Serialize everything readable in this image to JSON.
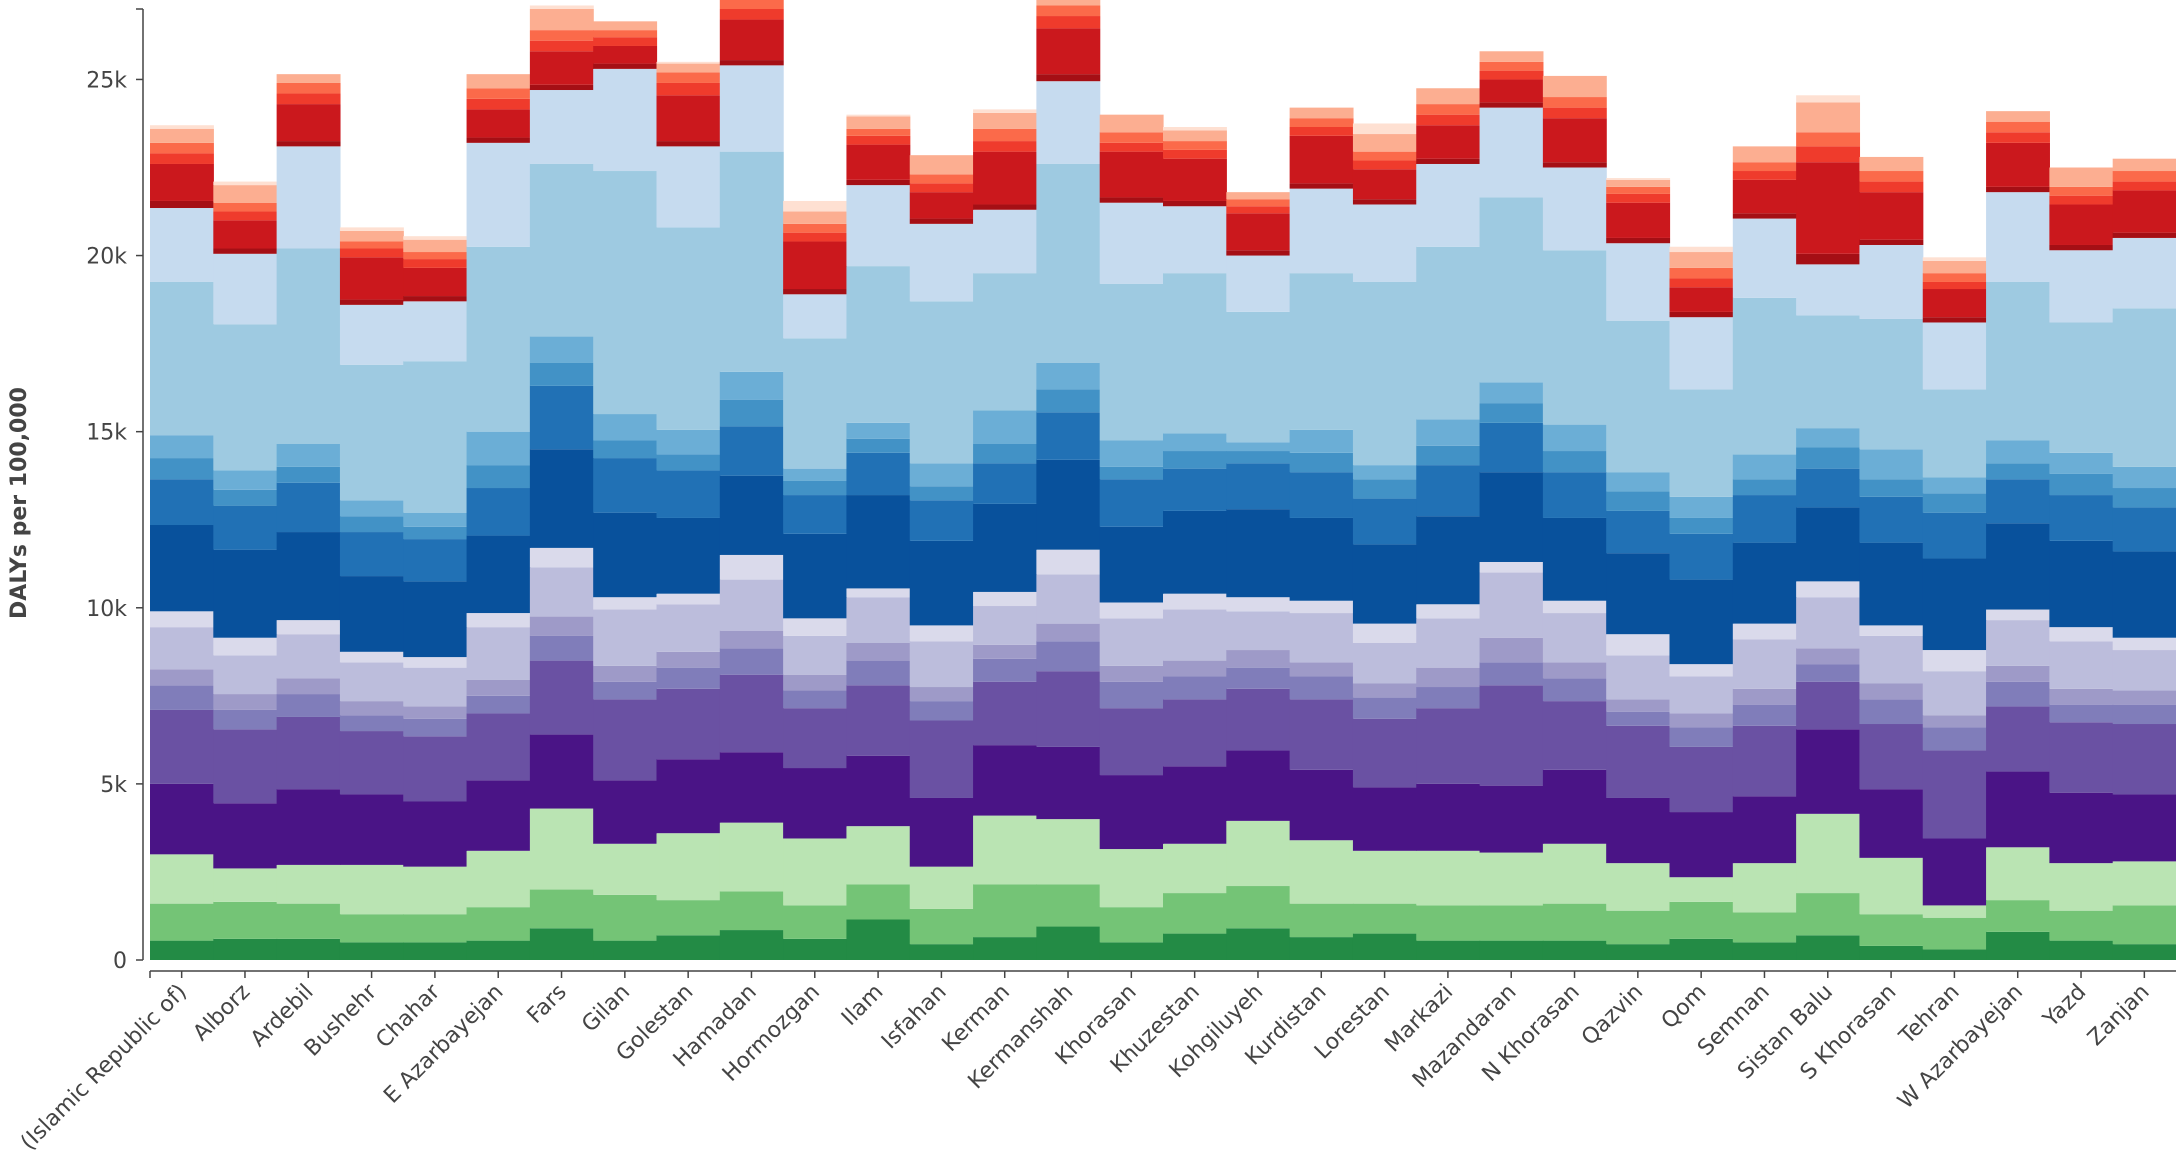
{
  "chart_data": {
    "type": "bar",
    "stacked": true,
    "ylabel": "DALYs per 100,000",
    "ylim": [
      0,
      27000
    ],
    "y_ticks": [
      0,
      5000,
      10000,
      15000,
      20000,
      25000
    ],
    "y_tick_labels": [
      "0",
      "5k",
      "10k",
      "15k",
      "20k",
      "25k"
    ],
    "categories": [
      "Iran (Islamic Republic of)",
      "Alborz",
      "Ardebil",
      "Bushehr",
      "Chahar",
      "E Azarbayejan",
      "Fars",
      "Gilan",
      "Golestan",
      "Hamadan",
      "Hormozgan",
      "Ilam",
      "Isfahan",
      "Kerman",
      "Kermanshah",
      "Khorasan",
      "Khuzestan",
      "Kohgiluyeh",
      "Kurdistan",
      "Lorestan",
      "Markazi",
      "Mazandaran",
      "N Khorasan",
      "Qazvin",
      "Qom",
      "Semnan",
      "Sistan Balu",
      "S Khorasan",
      "Tehran",
      "W Azarbayejan",
      "Yazd",
      "Zanjan"
    ],
    "tick_labels": [
      "(Islamic Republic of)",
      "Alborz",
      "Ardebil",
      "Bushehr",
      "Chahar",
      "E Azarbayejan",
      "Fars",
      "Gilan",
      "Golestan",
      "Hamadan",
      "Hormozgan",
      "Ilam",
      "Isfahan",
      "Kerman",
      "Kermanshah",
      "Khorasan",
      "Khuzestan",
      "Kohgiluyeh",
      "Kurdistan",
      "Lorestan",
      "Markazi",
      "Mazandaran",
      "N Khorasan",
      "Qazvin",
      "Qom",
      "Semnan",
      "Sistan Balu",
      "S Khorasan",
      "Tehran",
      "W Azarbayejan",
      "Yazd",
      "Zanjan"
    ],
    "series": [
      {
        "color": "#238b45",
        "values": [
          550,
          600,
          600,
          500,
          500,
          550,
          900,
          550,
          700,
          850,
          600,
          1150,
          450,
          650,
          950,
          500,
          750,
          900,
          650,
          750,
          550,
          550,
          550,
          450,
          600,
          500,
          700,
          400,
          300,
          800,
          550,
          450
        ]
      },
      {
        "color": "#74c476",
        "values": [
          1050,
          1050,
          1000,
          800,
          800,
          950,
          1100,
          1300,
          1000,
          1100,
          950,
          1000,
          1000,
          1500,
          1200,
          1000,
          1150,
          1200,
          950,
          850,
          1000,
          1000,
          1050,
          950,
          1050,
          850,
          1200,
          900,
          900,
          900,
          850,
          1100
        ]
      },
      {
        "color": "#bae4b3",
        "values": [
          1400,
          950,
          1100,
          1400,
          1350,
          1600,
          2300,
          1450,
          1900,
          1950,
          1900,
          1650,
          1200,
          1950,
          1850,
          1650,
          1400,
          1850,
          1800,
          1500,
          1550,
          1500,
          1700,
          1350,
          700,
          1400,
          2250,
          1600,
          350,
          1500,
          1350,
          1250
        ]
      },
      {
        "color": "#4a1486",
        "values": [
          2000,
          1850,
          2150,
          2000,
          1850,
          2000,
          2100,
          1800,
          2100,
          2000,
          2000,
          2000,
          1950,
          2000,
          2050,
          2100,
          2200,
          2000,
          2000,
          1800,
          1900,
          1900,
          2100,
          1850,
          1850,
          1900,
          2400,
          1950,
          1900,
          2150,
          2000,
          1900
        ]
      },
      {
        "color": "#6a51a3",
        "values": [
          2100,
          2100,
          2050,
          1800,
          1850,
          1900,
          2100,
          2300,
          2000,
          2200,
          1700,
          2000,
          2200,
          1800,
          2150,
          1900,
          1900,
          1750,
          2000,
          1950,
          2150,
          2850,
          1950,
          2050,
          1850,
          2000,
          1350,
          1850,
          2500,
          1850,
          2000,
          2000
        ]
      },
      {
        "color": "#807dba",
        "values": [
          700,
          550,
          650,
          450,
          500,
          500,
          700,
          500,
          600,
          750,
          500,
          700,
          550,
          650,
          850,
          750,
          650,
          600,
          650,
          600,
          600,
          650,
          650,
          400,
          550,
          600,
          500,
          700,
          650,
          700,
          500,
          550
        ]
      },
      {
        "color": "#9e9ac8",
        "values": [
          450,
          450,
          450,
          400,
          350,
          450,
          550,
          450,
          450,
          500,
          450,
          500,
          400,
          400,
          500,
          450,
          450,
          500,
          400,
          400,
          550,
          700,
          450,
          350,
          400,
          450,
          450,
          450,
          350,
          450,
          450,
          400
        ]
      },
      {
        "color": "#bcbddc",
        "values": [
          1200,
          1100,
          1250,
          1100,
          1100,
          1500,
          1400,
          1600,
          1350,
          1450,
          1100,
          1300,
          1300,
          1100,
          1400,
          1350,
          1450,
          1100,
          1400,
          1150,
          1400,
          1850,
          1400,
          1250,
          1050,
          1400,
          1450,
          1350,
          1250,
          1300,
          1350,
          1150
        ]
      },
      {
        "color": "#dadaeb",
        "values": [
          450,
          500,
          400,
          300,
          300,
          400,
          550,
          350,
          300,
          700,
          500,
          250,
          450,
          400,
          700,
          450,
          450,
          400,
          350,
          550,
          400,
          300,
          350,
          600,
          350,
          450,
          450,
          300,
          600,
          300,
          400,
          350
        ]
      },
      {
        "color": "#08519c",
        "values": [
          2450,
          2500,
          2500,
          2150,
          2150,
          2200,
          2800,
          2400,
          2150,
          2250,
          2400,
          2650,
          2400,
          2500,
          2550,
          2150,
          2350,
          2500,
          2350,
          2250,
          2500,
          2550,
          2350,
          2300,
          2400,
          2300,
          2100,
          2350,
          2600,
          2450,
          2450,
          2450
        ]
      },
      {
        "color": "#2171b5",
        "values": [
          1300,
          1250,
          1400,
          1250,
          1200,
          1350,
          1800,
          1550,
          1350,
          1400,
          1100,
          1200,
          1150,
          1150,
          1350,
          1350,
          1200,
          1300,
          1300,
          1300,
          1450,
          1400,
          1300,
          1200,
          1300,
          1350,
          1100,
          1300,
          1300,
          1250,
          1300,
          1250
        ]
      },
      {
        "color": "#4292c6",
        "values": [
          600,
          450,
          450,
          450,
          350,
          650,
          650,
          500,
          450,
          750,
          400,
          400,
          400,
          550,
          650,
          350,
          500,
          350,
          550,
          550,
          550,
          550,
          600,
          550,
          450,
          450,
          600,
          500,
          550,
          450,
          600,
          550
        ]
      },
      {
        "color": "#6baed6",
        "values": [
          650,
          550,
          650,
          450,
          400,
          950,
          750,
          750,
          700,
          800,
          350,
          450,
          650,
          950,
          750,
          750,
          500,
          250,
          650,
          400,
          750,
          600,
          750,
          550,
          600,
          700,
          550,
          850,
          450,
          650,
          600,
          600
        ]
      },
      {
        "color": "#9ecae1",
        "values": [
          4350,
          4150,
          5550,
          3850,
          4300,
          5250,
          4900,
          6900,
          5750,
          6250,
          3700,
          4450,
          4600,
          3900,
          5650,
          4450,
          4550,
          3700,
          4450,
          5200,
          4900,
          5250,
          4950,
          4300,
          3050,
          4450,
          3200,
          3700,
          2500,
          4500,
          3700,
          4500
        ]
      },
      {
        "color": "#c6dbef",
        "values": [
          2100,
          2000,
          2900,
          1700,
          1700,
          2950,
          2100,
          2900,
          2300,
          2450,
          1250,
          2300,
          2200,
          1800,
          2350,
          2300,
          1900,
          1600,
          2400,
          2200,
          2350,
          2550,
          2350,
          2200,
          2050,
          2250,
          1450,
          2100,
          1900,
          2550,
          2050,
          2000
        ]
      },
      {
        "color": "#a50f15",
        "values": [
          200,
          150,
          150,
          150,
          150,
          150,
          150,
          150,
          150,
          150,
          150,
          150,
          150,
          150,
          200,
          150,
          150,
          150,
          150,
          150,
          150,
          150,
          150,
          150,
          150,
          150,
          300,
          150,
          150,
          150,
          150,
          150
        ]
      },
      {
        "color": "#cb181d",
        "values": [
          1050,
          800,
          1050,
          1200,
          800,
          800,
          950,
          500,
          1300,
          1150,
          1350,
          1000,
          750,
          1500,
          1300,
          1300,
          1200,
          1050,
          1350,
          850,
          950,
          650,
          1250,
          1000,
          700,
          950,
          2600,
          1350,
          800,
          1250,
          1150,
          1200
        ]
      },
      {
        "color": "#ef3b2c",
        "values": [
          300,
          250,
          300,
          250,
          250,
          300,
          300,
          250,
          350,
          300,
          250,
          250,
          250,
          300,
          350,
          250,
          250,
          200,
          250,
          250,
          300,
          250,
          300,
          250,
          250,
          250,
          450,
          300,
          200,
          300,
          250,
          250
        ]
      },
      {
        "color": "#fb6a4a",
        "values": [
          300,
          250,
          300,
          200,
          200,
          300,
          300,
          200,
          300,
          300,
          250,
          200,
          250,
          350,
          300,
          300,
          250,
          200,
          250,
          250,
          300,
          250,
          300,
          200,
          300,
          250,
          400,
          300,
          250,
          300,
          250,
          300
        ]
      },
      {
        "color": "#fcae91",
        "values": [
          400,
          500,
          250,
          300,
          350,
          400,
          600,
          250,
          250,
          400,
          350,
          350,
          550,
          450,
          350,
          500,
          300,
          200,
          300,
          500,
          450,
          300,
          600,
          200,
          450,
          450,
          850,
          400,
          350,
          300,
          550,
          350
        ]
      },
      {
        "color": "#fee0d2",
        "values": [
          100,
          100,
          0,
          100,
          100,
          0,
          100,
          0,
          50,
          0,
          300,
          50,
          0,
          100,
          400,
          0,
          100,
          0,
          0,
          300,
          0,
          0,
          0,
          50,
          150,
          0,
          200,
          0,
          100,
          0,
          0,
          0
        ]
      }
    ]
  }
}
